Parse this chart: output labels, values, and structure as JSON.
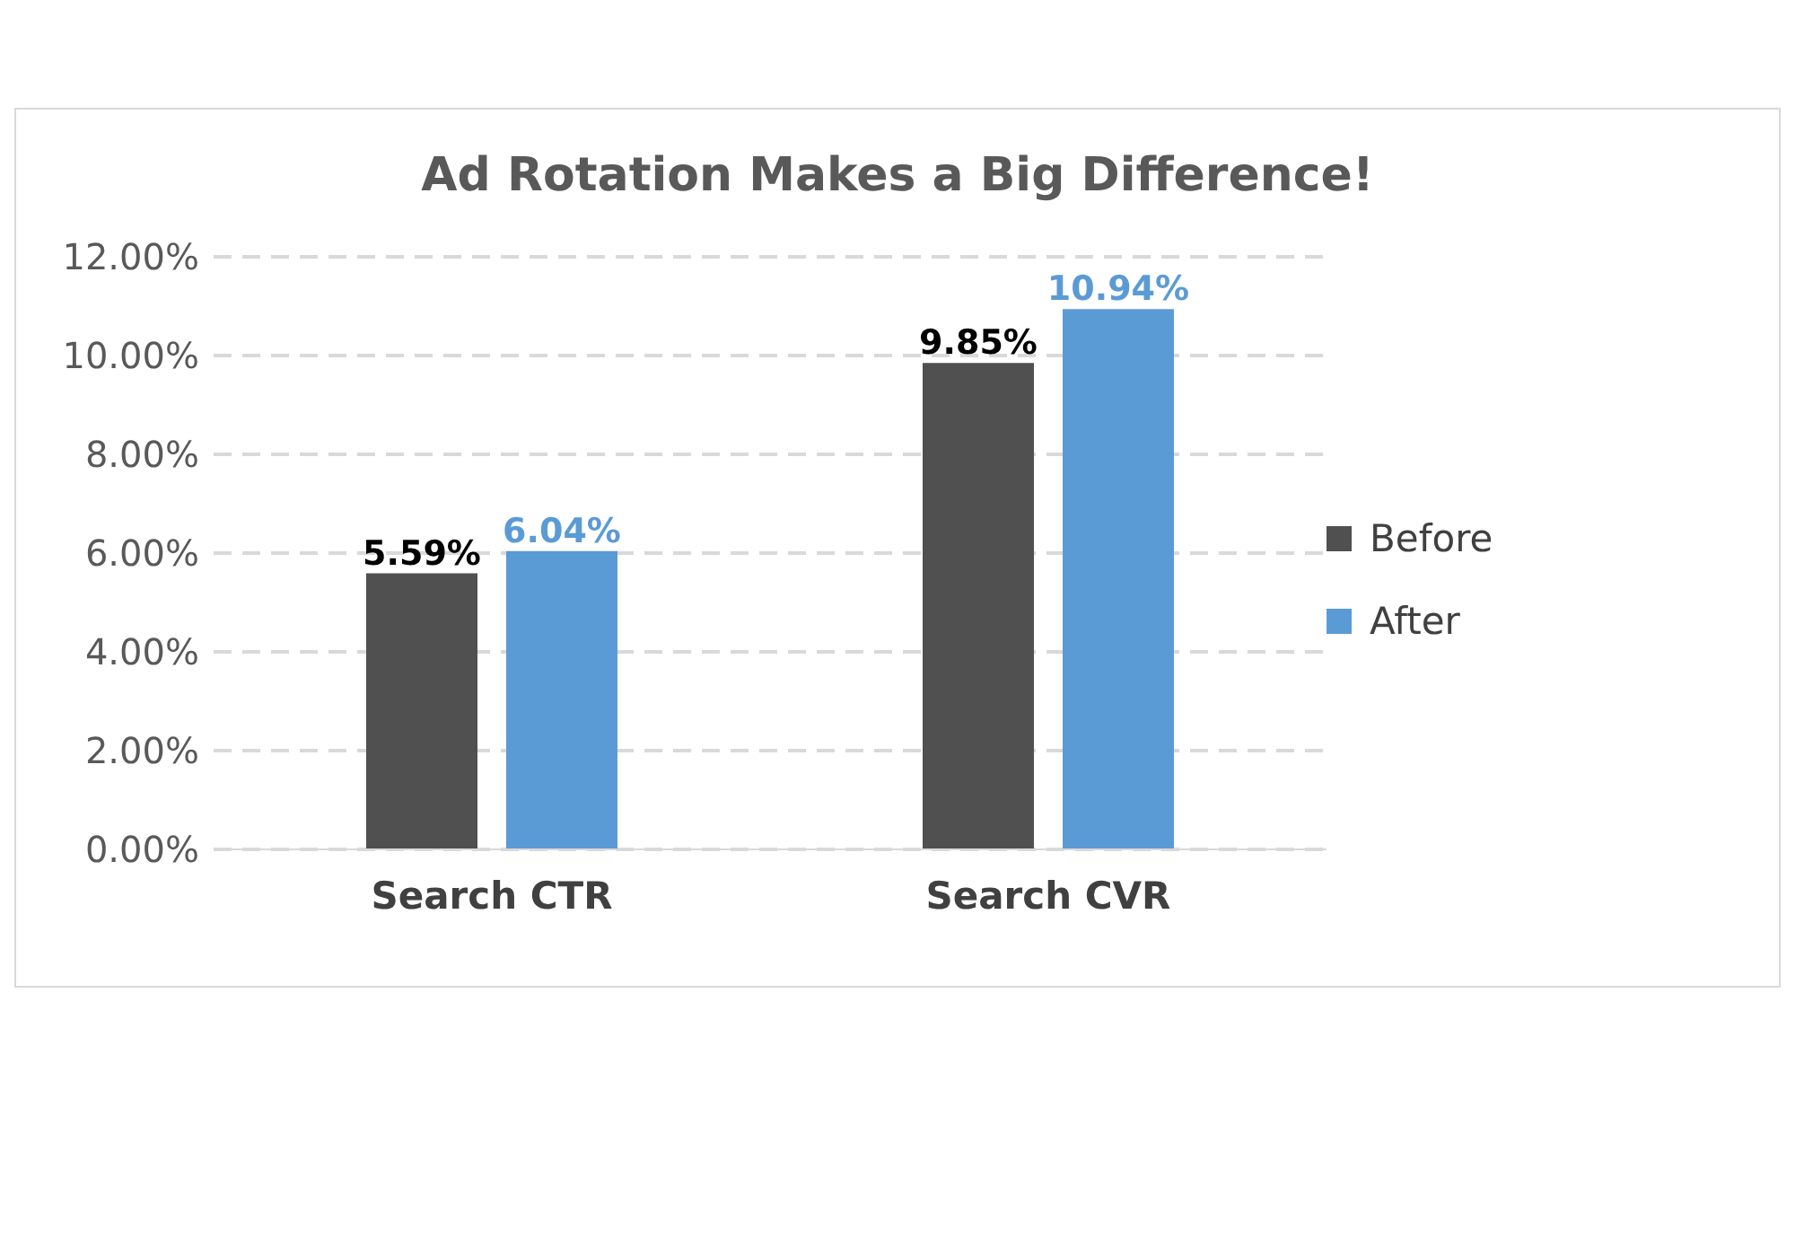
{
  "chart_data": {
    "type": "bar",
    "title": "Ad Rotation Makes a Big Difference!",
    "categories": [
      "Search CTR",
      "Search CVR"
    ],
    "series": [
      {
        "name": "Before",
        "color": "#505050",
        "values": [
          5.59,
          9.85
        ],
        "value_labels": [
          "5.59%",
          "9.85%"
        ]
      },
      {
        "name": "After",
        "color": "#5b9bd5",
        "values": [
          6.04,
          10.94
        ],
        "value_labels": [
          "6.04%",
          "10.94%"
        ]
      }
    ],
    "ylim": [
      0,
      12
    ],
    "yticks": [
      {
        "value": 0,
        "label": "0.00%"
      },
      {
        "value": 2,
        "label": "2.00%"
      },
      {
        "value": 4,
        "label": "4.00%"
      },
      {
        "value": 6,
        "label": "6.00%"
      },
      {
        "value": 8,
        "label": "8.00%"
      },
      {
        "value": 10,
        "label": "10.00%"
      },
      {
        "value": 12,
        "label": "12.00%"
      }
    ],
    "grid": "y",
    "legend": "right"
  }
}
